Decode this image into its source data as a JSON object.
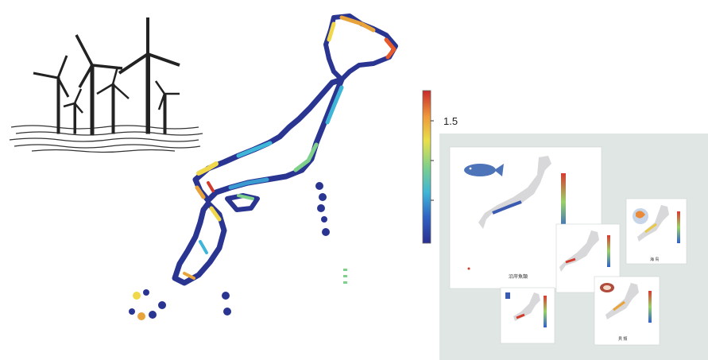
{
  "colorbar": {
    "tick_label": "1.5",
    "colors": [
      "#2a2f8f",
      "#2f62c4",
      "#3fb5d8",
      "#7fd08a",
      "#e8e04a",
      "#f09a3a",
      "#c8282c"
    ]
  },
  "minimaps": [
    {
      "icon": "fish-icon",
      "label": "沿岸魚類"
    },
    {
      "icon": "",
      "label": ""
    },
    {
      "icon": "",
      "label": "海 鳥"
    },
    {
      "icon": "",
      "label": ""
    },
    {
      "icon": "shell-icon",
      "label": "貝 類"
    }
  ],
  "icons": {
    "turbines": "wind-turbine-icon",
    "sea": "wave-icon"
  },
  "colors": {
    "panel_bg": "#dfe6e3",
    "map_low": "#2a3592",
    "map_high": "#d23a2a",
    "land_gray": "#d8d8da"
  }
}
